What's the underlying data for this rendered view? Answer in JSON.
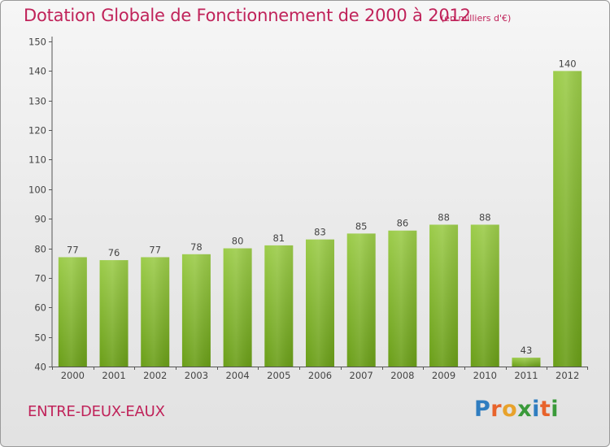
{
  "chart_data": {
    "type": "bar",
    "title": "Dotation Globale de Fonctionnement de 2000 à 2012",
    "unit": "(en milliers d'€)",
    "categories": [
      "2000",
      "2001",
      "2002",
      "2003",
      "2004",
      "2005",
      "2006",
      "2007",
      "2008",
      "2009",
      "2010",
      "2011",
      "2012"
    ],
    "values": [
      77,
      76,
      77,
      78,
      80,
      81,
      83,
      85,
      86,
      88,
      88,
      43,
      140
    ],
    "data_labels": [
      "77",
      "76",
      "77",
      "78",
      "80",
      "81",
      "83",
      "85",
      "86",
      "88",
      "88",
      "43",
      "140"
    ],
    "yticks": [
      "40",
      "50",
      "60",
      "70",
      "80",
      "90",
      "100",
      "110",
      "120",
      "130",
      "140",
      "150"
    ],
    "ylim": [
      40,
      150
    ],
    "grid": false,
    "bar_color_top": "#9ccc4a",
    "bar_color_bottom": "#6a9e18"
  },
  "commune": "ENTRE-DEUX-EAUX",
  "logo": {
    "letters": [
      "P",
      "r",
      "o",
      "x",
      "i",
      "t",
      "i"
    ],
    "colors": [
      "#2f7dc0",
      "#e8632b",
      "#e8a22b",
      "#3a9a3a",
      "#2f7dc0",
      "#e8632b",
      "#3a9a3a"
    ]
  }
}
